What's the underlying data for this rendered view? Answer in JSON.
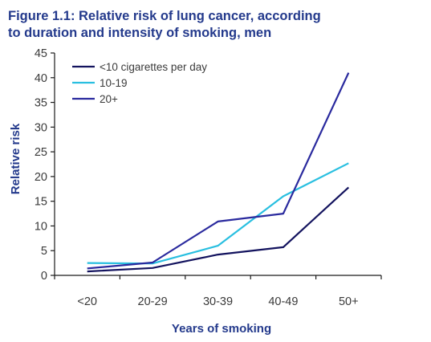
{
  "chart_data": {
    "type": "line",
    "title": "Figure 1.1: Relative risk of lung cancer, according",
    "subtitle": "to duration and intensity of smoking, men",
    "xlabel": "Years of smoking",
    "ylabel": "Relative risk",
    "categories": [
      "<20",
      "20-29",
      "30-39",
      "40-49",
      "50+"
    ],
    "ylim": [
      0,
      45
    ],
    "yticks": [
      0,
      5,
      10,
      15,
      20,
      25,
      30,
      35,
      40,
      45
    ],
    "grid": false,
    "legend_position": "top-left",
    "series": [
      {
        "name": "<10 cigarettes per day",
        "color": "#13135e",
        "values": [
          0.8,
          1.5,
          4.2,
          5.7,
          17.8
        ]
      },
      {
        "name": "10-19",
        "color": "#29bfe0",
        "values": [
          2.5,
          2.4,
          6.0,
          16.0,
          22.7
        ]
      },
      {
        "name": "20+",
        "color": "#2a2a9e",
        "values": [
          1.4,
          2.6,
          10.9,
          12.5,
          41.0
        ]
      }
    ]
  },
  "colors": {
    "title": "#243a8c",
    "axis_title": "#243a8c",
    "axis_line": "#1a1a1a"
  }
}
